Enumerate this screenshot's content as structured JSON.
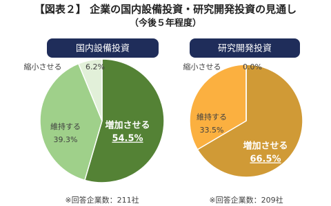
{
  "title": "【図表２】 企業の国内設備投資・研究開発投資の見通し",
  "subtitle": "（今後５年程度）",
  "chart_data": [
    {
      "type": "pie",
      "title": "国内設備投資",
      "categories": [
        "増加させる",
        "維持する",
        "縮小させる"
      ],
      "values": [
        54.5,
        39.3,
        6.2
      ],
      "value_labels": [
        "54.5%",
        "39.3%",
        "6.2%"
      ],
      "colors": [
        "#548235",
        "#9fd08a",
        "#e2f0d9"
      ],
      "note": "※回答企業数：211社"
    },
    {
      "type": "pie",
      "title": "研究開発投資",
      "categories": [
        "増加させる",
        "維持する",
        "縮小させる"
      ],
      "values": [
        66.5,
        33.5,
        0.0
      ],
      "value_labels": [
        "66.5%",
        "33.5%",
        "0.0%"
      ],
      "colors": [
        "#d09a36",
        "#fbb040",
        "#fde9c4"
      ],
      "note": "※回答企業数：209社"
    }
  ]
}
